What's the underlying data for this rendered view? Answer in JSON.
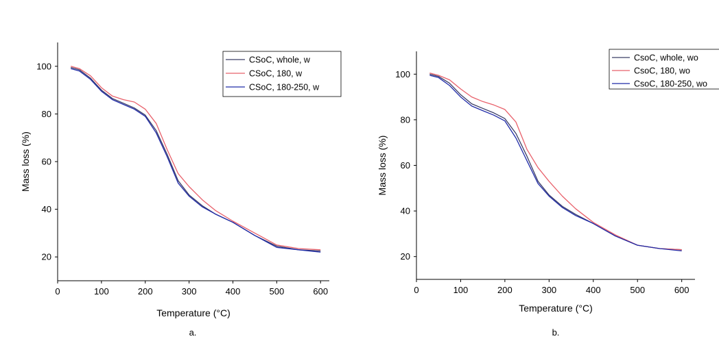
{
  "chart_data": [
    {
      "type": "line",
      "panel_label": "a.",
      "xlabel": "Temperature (°C)",
      "ylabel": "Mass loss (%)",
      "xlim": [
        0,
        620
      ],
      "ylim": [
        10,
        110
      ],
      "xticks": [
        "0",
        "100",
        "200",
        "300",
        "400",
        "500",
        "600"
      ],
      "yticks": [
        "20",
        "40",
        "60",
        "80",
        "100"
      ],
      "legend_position": "top-right",
      "grid": false,
      "series": [
        {
          "name": "CSoC, whole, w",
          "color": "#3a3d66",
          "x": [
            30,
            50,
            75,
            100,
            125,
            150,
            175,
            200,
            225,
            250,
            275,
            300,
            330,
            360,
            400,
            450,
            500,
            550,
            600
          ],
          "y": [
            99.5,
            98.5,
            95,
            90,
            86.5,
            84.5,
            82.5,
            79.5,
            73,
            63,
            52,
            46,
            41.5,
            38,
            34.5,
            29,
            24.5,
            23,
            22.5
          ]
        },
        {
          "name": "CSoC, 180, w",
          "color": "#e8606a",
          "x": [
            30,
            50,
            75,
            100,
            125,
            150,
            175,
            200,
            225,
            250,
            275,
            300,
            330,
            360,
            400,
            450,
            500,
            550,
            600
          ],
          "y": [
            100,
            99,
            96,
            91,
            87.5,
            86,
            85,
            82,
            76,
            65,
            55,
            49.5,
            44,
            39.5,
            35,
            30,
            25,
            23.5,
            23
          ]
        },
        {
          "name": "CSoC, 180-250, w",
          "color": "#1f2aa8",
          "x": [
            30,
            50,
            75,
            100,
            125,
            150,
            175,
            200,
            225,
            250,
            275,
            300,
            330,
            360,
            400,
            450,
            500,
            550,
            600
          ],
          "y": [
            99,
            98,
            94.5,
            89.5,
            86,
            84,
            82,
            79,
            72,
            62,
            51,
            45.5,
            41,
            38,
            34.5,
            29,
            24,
            23,
            22
          ]
        }
      ]
    },
    {
      "type": "line",
      "panel_label": "b.",
      "xlabel": "Temperature (°C)",
      "ylabel": "Mass loss (%)",
      "xlim": [
        0,
        630
      ],
      "ylim": [
        10,
        110
      ],
      "xticks": [
        "0",
        "100",
        "200",
        "300",
        "400",
        "500",
        "600"
      ],
      "yticks": [
        "20",
        "40",
        "60",
        "80",
        "100"
      ],
      "legend_position": "top-right",
      "grid": false,
      "series": [
        {
          "name": "CsoC, whole, wo",
          "color": "#3a3d66",
          "x": [
            30,
            50,
            75,
            100,
            125,
            150,
            175,
            200,
            225,
            250,
            275,
            300,
            330,
            360,
            400,
            450,
            500,
            550,
            600
          ],
          "y": [
            100,
            99,
            96,
            91,
            87,
            85,
            83,
            80.5,
            74,
            64,
            53,
            47,
            42,
            38.5,
            34.5,
            29,
            25,
            23.5,
            23
          ]
        },
        {
          "name": "CsoC, 180, wo",
          "color": "#e8606a",
          "x": [
            30,
            50,
            75,
            100,
            125,
            150,
            175,
            200,
            225,
            250,
            275,
            300,
            330,
            360,
            400,
            450,
            500,
            550,
            600
          ],
          "y": [
            100.5,
            99.5,
            97.5,
            93.5,
            90,
            88,
            86.5,
            84.5,
            79,
            67,
            59,
            53,
            46.5,
            41,
            35,
            29.5,
            25,
            23.5,
            23
          ]
        },
        {
          "name": "CsoC, 180-250, wo",
          "color": "#1f2aa8",
          "x": [
            30,
            50,
            75,
            100,
            125,
            150,
            175,
            200,
            225,
            250,
            275,
            300,
            330,
            360,
            400,
            450,
            500,
            550,
            600
          ],
          "y": [
            99.5,
            98.5,
            95,
            90,
            86,
            84,
            82,
            79.5,
            72,
            62,
            52,
            46.5,
            41.5,
            38,
            34.5,
            29,
            25,
            23.5,
            22.5
          ]
        }
      ]
    }
  ]
}
